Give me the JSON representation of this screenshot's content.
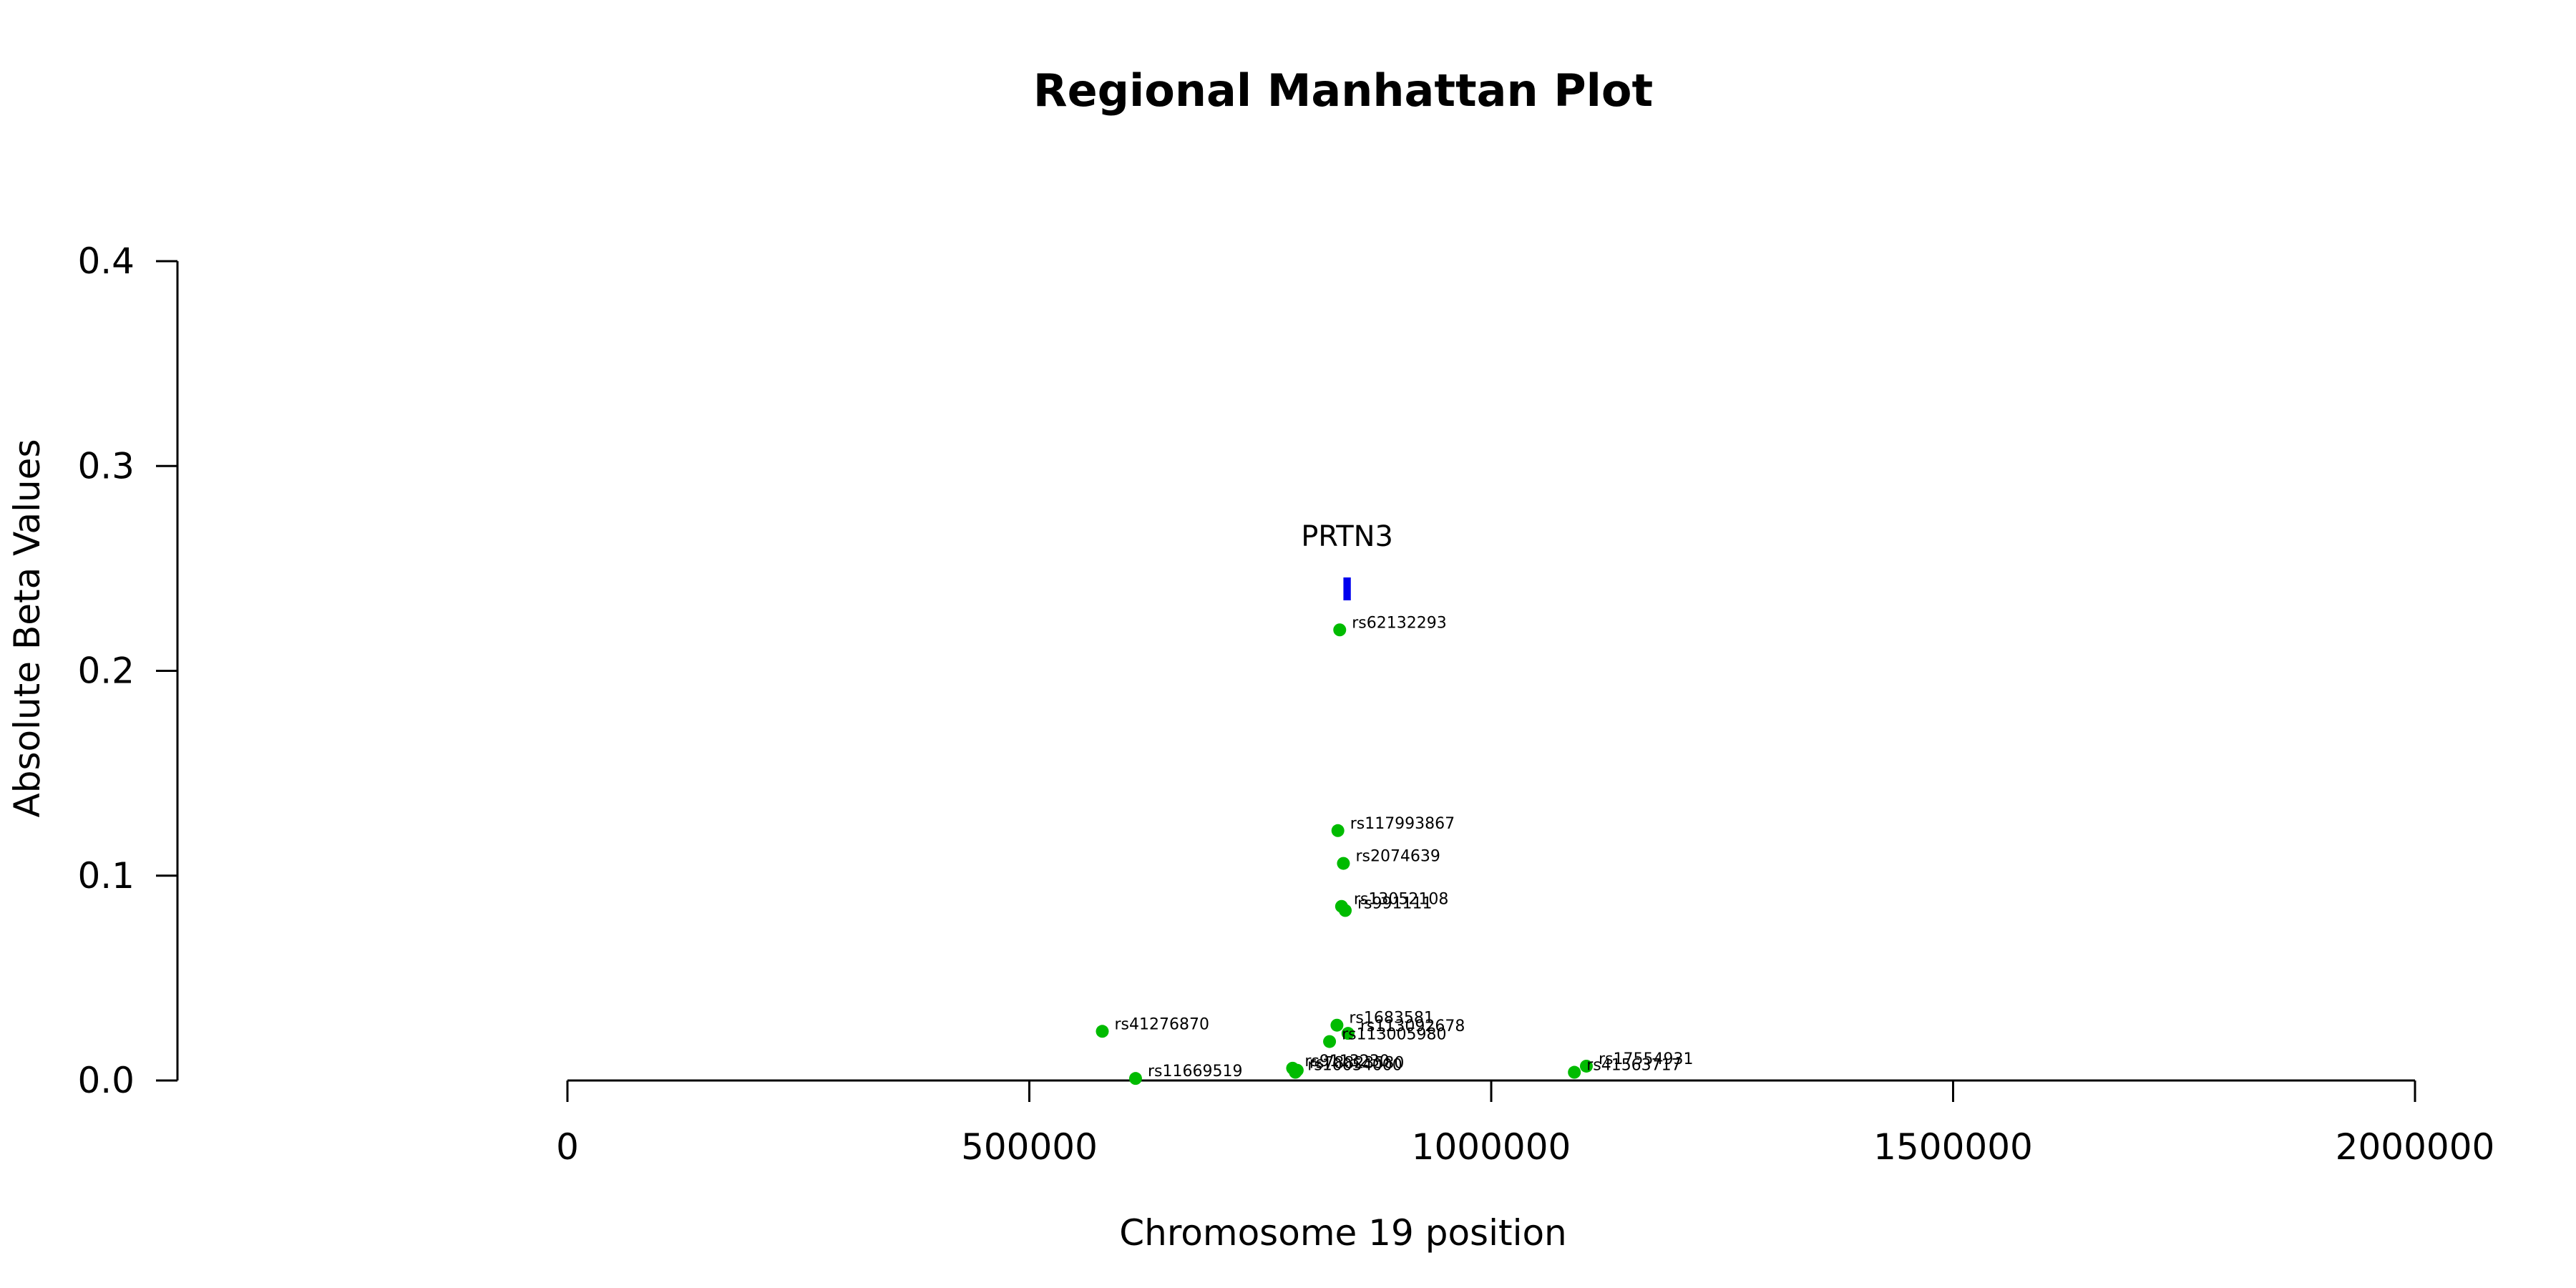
{
  "chart_data": {
    "type": "scatter",
    "title": "Regional Manhattan Plot",
    "xlabel": "Chromosome 19 position",
    "ylabel": "Absolute Beta Values",
    "xlim": [
      0,
      2000000
    ],
    "ylim": [
      0,
      0.4
    ],
    "x_ticks": [
      0,
      500000,
      1000000,
      1500000,
      2000000
    ],
    "x_tick_labels": [
      "0",
      "500000",
      "1000000",
      "1500000",
      "2000000"
    ],
    "y_ticks": [
      0,
      0.1,
      0.2,
      0.3,
      0.4
    ],
    "y_tick_labels": [
      "0.0",
      "0.1",
      "0.2",
      "0.3",
      "0.4"
    ],
    "grid": false,
    "gene": {
      "name": "PRTN3",
      "start": 840000,
      "end": 848000,
      "value": 0.24,
      "color": "#0000ee"
    },
    "point_color": "#00bb00",
    "points": [
      {
        "label": "rs62132293",
        "x": 836000,
        "y": 0.22
      },
      {
        "label": "rs117993867",
        "x": 834000,
        "y": 0.122
      },
      {
        "label": "rs2074639",
        "x": 840000,
        "y": 0.106
      },
      {
        "label": "rs13052108",
        "x": 838000,
        "y": 0.085
      },
      {
        "label": "rs991111",
        "x": 842000,
        "y": 0.083
      },
      {
        "label": "rs41276870",
        "x": 579000,
        "y": 0.024
      },
      {
        "label": "rs1683581",
        "x": 833000,
        "y": 0.027
      },
      {
        "label": "rs113092678",
        "x": 845000,
        "y": 0.023
      },
      {
        "label": "rs113005980",
        "x": 825000,
        "y": 0.019
      },
      {
        "label": "rs9113230",
        "x": 785000,
        "y": 0.006
      },
      {
        "label": "rs78823580",
        "x": 790000,
        "y": 0.005
      },
      {
        "label": "rs10054000",
        "x": 788000,
        "y": 0.004
      },
      {
        "label": "rs11669519",
        "x": 615000,
        "y": 0.001
      },
      {
        "label": "rs17554931",
        "x": 1103000,
        "y": 0.007
      },
      {
        "label": "rs41563717",
        "x": 1090000,
        "y": 0.004
      }
    ]
  }
}
